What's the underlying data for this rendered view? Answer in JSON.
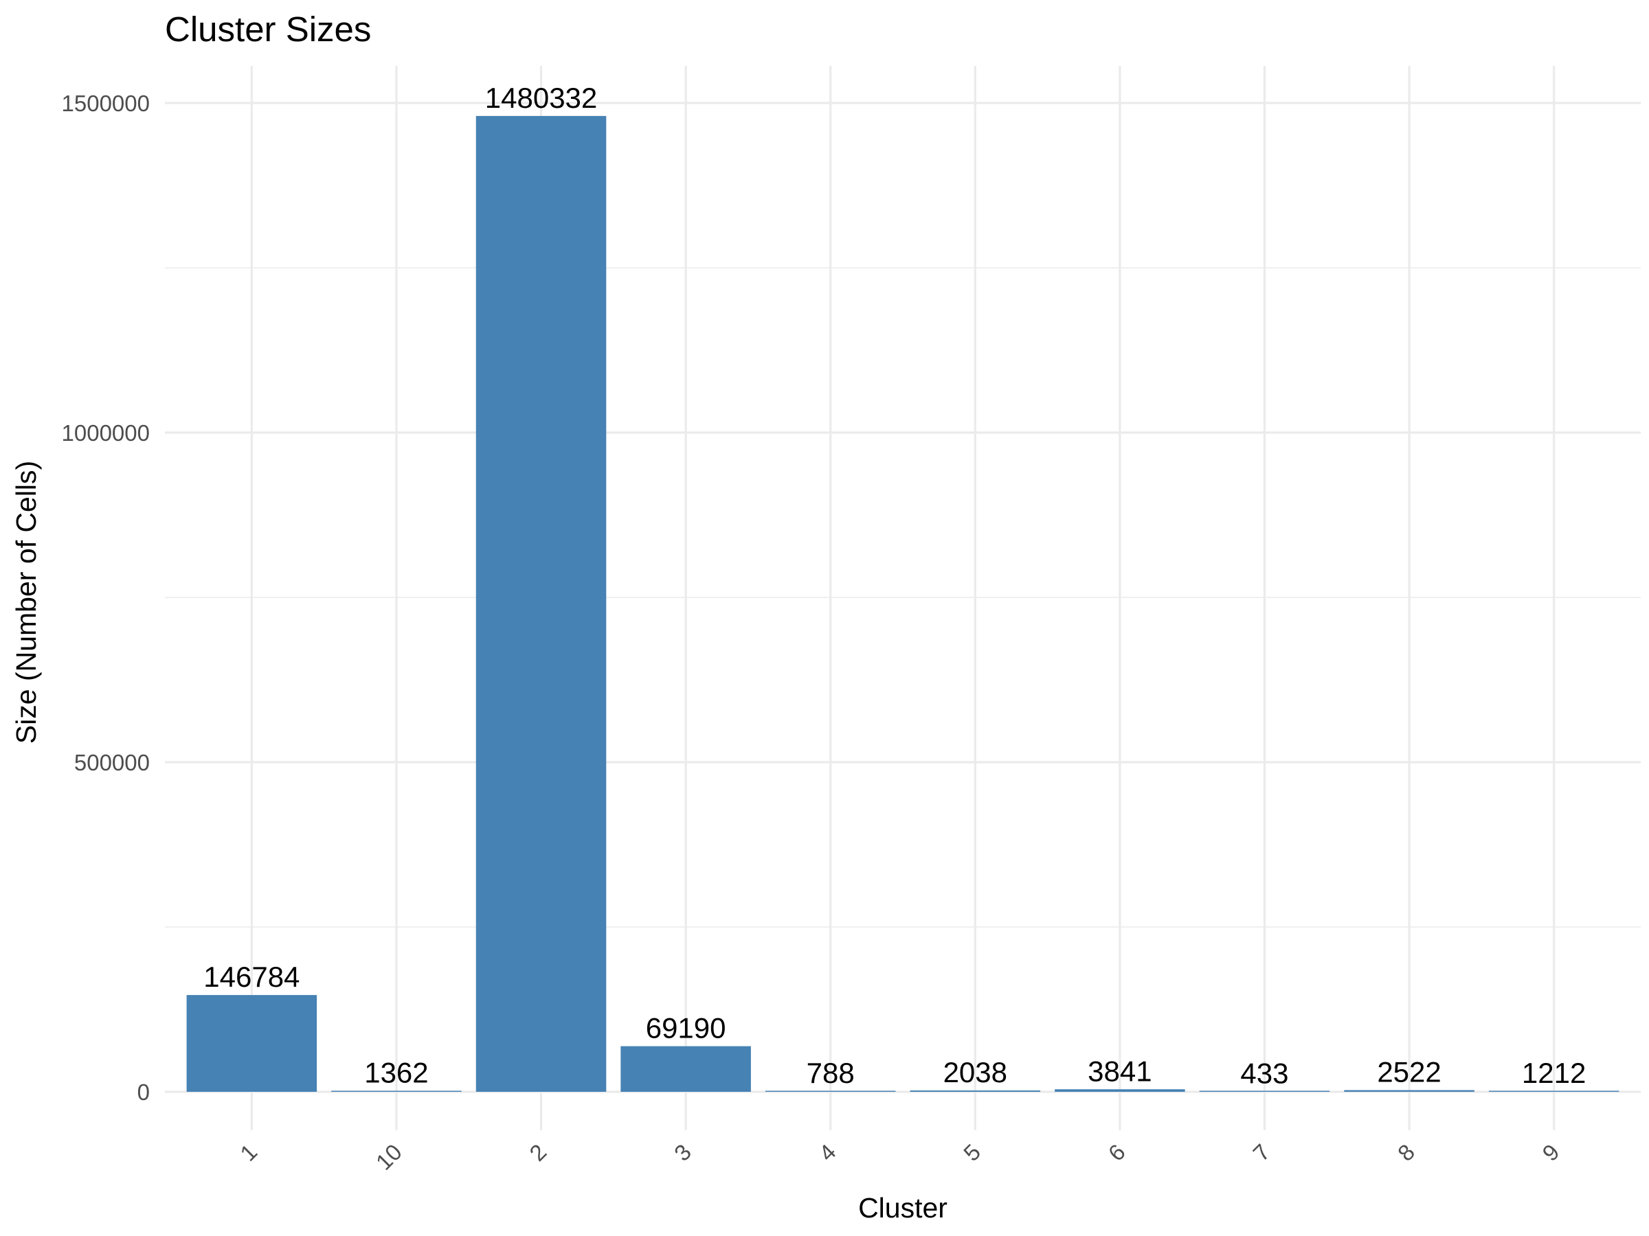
{
  "chart_data": {
    "type": "bar",
    "title": "Cluster Sizes",
    "xlabel": "Cluster",
    "ylabel": "Size (Number of Cells)",
    "categories": [
      "1",
      "10",
      "2",
      "3",
      "4",
      "5",
      "6",
      "7",
      "8",
      "9"
    ],
    "values": [
      146784,
      1362,
      1480332,
      69190,
      788,
      2038,
      3841,
      433,
      2522,
      1212
    ],
    "data_labels": [
      "146784",
      "1362",
      "1480332",
      "69190",
      "788",
      "2038",
      "3841",
      "433",
      "2522",
      "1212"
    ],
    "yticks": [
      0,
      500000,
      1000000,
      1500000
    ],
    "ytick_labels": [
      "0",
      "500000",
      "1000000",
      "1500000"
    ],
    "ylim": [
      -74000,
      1554000
    ],
    "grid": true,
    "legend": "none",
    "bar_color": "#4682b4",
    "x_tick_rotation": "45deg"
  }
}
